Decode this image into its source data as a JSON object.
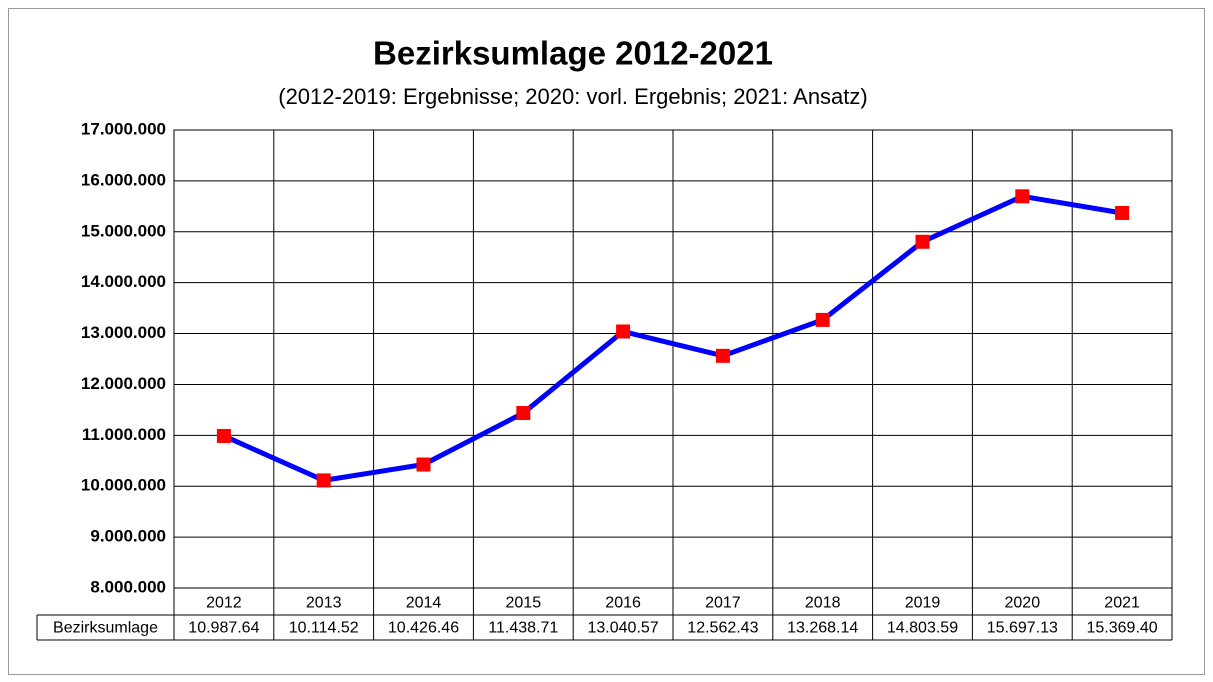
{
  "chart_data": {
    "type": "line",
    "title": "Bezirksumlage 2012-2021",
    "subtitle": "(2012-2019: Ergebnisse; 2020: vorl. Ergebnis; 2021: Ansatz)",
    "categories": [
      "2012",
      "2013",
      "2014",
      "2015",
      "2016",
      "2017",
      "2018",
      "2019",
      "2020",
      "2021"
    ],
    "series": [
      {
        "name": "Bezirksumlage",
        "color": "#0000ff",
        "marker_color": "#ff0000",
        "values": [
          10987640,
          10114520,
          10426460,
          11438710,
          13040570,
          12562430,
          13268140,
          14803590,
          15697130,
          15369400
        ],
        "value_labels": [
          "10.987.64",
          "10.114.52",
          "10.426.46",
          "11.438.71",
          "13.040.57",
          "12.562.43",
          "13.268.14",
          "14.803.59",
          "15.697.13",
          "15.369.40"
        ]
      }
    ],
    "ylim": [
      8000000,
      17000000
    ],
    "yticks": [
      {
        "value": 8000000,
        "label": "8.000.000"
      },
      {
        "value": 9000000,
        "label": "9.000.000"
      },
      {
        "value": 10000000,
        "label": "10.000.000"
      },
      {
        "value": 11000000,
        "label": "11.000.000"
      },
      {
        "value": 12000000,
        "label": "12.000.000"
      },
      {
        "value": 13000000,
        "label": "13.000.000"
      },
      {
        "value": 14000000,
        "label": "14.000.000"
      },
      {
        "value": 15000000,
        "label": "15.000.000"
      },
      {
        "value": 16000000,
        "label": "16.000.000"
      },
      {
        "value": 17000000,
        "label": "17.000.000"
      }
    ],
    "grid": true,
    "data_table": true
  }
}
